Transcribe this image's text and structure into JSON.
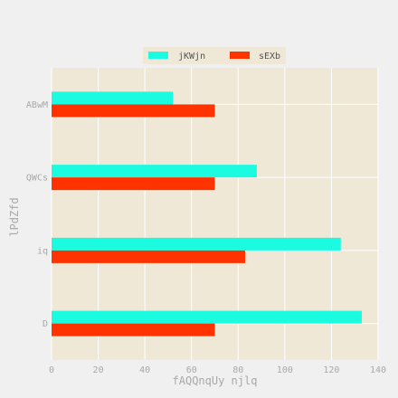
{
  "chart_data": {
    "type": "bar",
    "orientation": "horizontal",
    "categories": [
      "D",
      "iq",
      "QWCs",
      "ABwM"
    ],
    "series": [
      {
        "name": "jKWjn",
        "color": "#1afbe0",
        "values": [
          133,
          124,
          88,
          52
        ]
      },
      {
        "name": "sEXb",
        "color": "#ff3300",
        "values": [
          70,
          83,
          70,
          70
        ]
      }
    ],
    "xlabel": "fAQQnqUy njlq",
    "ylabel": "lPdZfd",
    "xlim": [
      0,
      140
    ],
    "xticks": [
      "0",
      "20",
      "40",
      "60",
      "80",
      "100",
      "120",
      "140"
    ],
    "grid": true,
    "legend": "top-center",
    "background": "#efe8d7",
    "grid_color": "#ffffff"
  }
}
